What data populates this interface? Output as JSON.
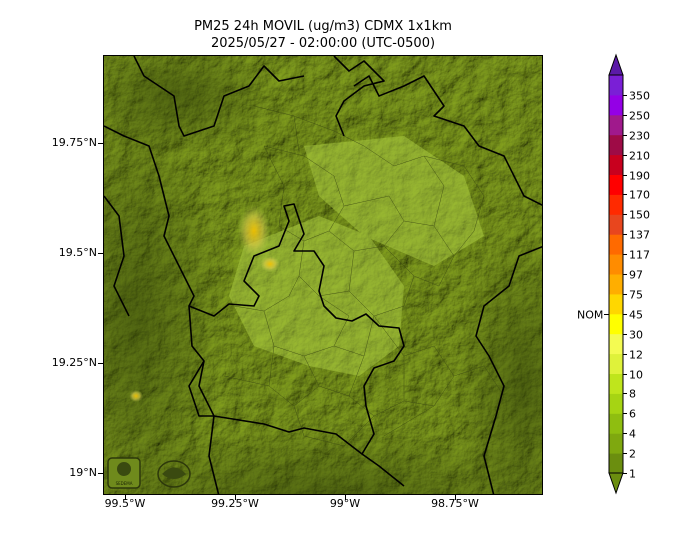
{
  "title": {
    "line1": "PM25 24h MOVIL (ug/m3) CDMX 1x1km",
    "line2": "2025/05/27 - 02:00:00 (UTC-0500)"
  },
  "map": {
    "lon_range": [
      -99.55,
      -98.55
    ],
    "lat_range": [
      18.95,
      19.95
    ],
    "lat_ticks": [
      {
        "value": 19.75,
        "label": "19.75°N"
      },
      {
        "value": 19.5,
        "label": "19.5°N"
      },
      {
        "value": 19.25,
        "label": "19.25°N"
      },
      {
        "value": 19.0,
        "label": "19°N"
      }
    ],
    "lon_ticks": [
      {
        "value": -99.5,
        "label": "99.5°W"
      },
      {
        "value": -99.25,
        "label": "99.25°W"
      },
      {
        "value": -99.0,
        "label": "99°W"
      },
      {
        "value": -98.75,
        "label": "98.75°W"
      }
    ],
    "logos": [
      "sedema-logo",
      "agency-logo"
    ]
  },
  "colorbar": {
    "levels": [
      "1",
      "2",
      "4",
      "6",
      "8",
      "10",
      "12",
      "30",
      "45",
      "75",
      "97",
      "117",
      "137",
      "150",
      "170",
      "190",
      "210",
      "230",
      "250",
      "350"
    ],
    "colors": [
      "#6b8e0f",
      "#7fa80f",
      "#8fbe10",
      "#a6d413",
      "#bfe51c",
      "#dff23a",
      "#f4fb52",
      "#ffff00",
      "#ffd700",
      "#ffae00",
      "#ff8c00",
      "#ff6a00",
      "#e8461e",
      "#ff2a00",
      "#ff0000",
      "#c8001e",
      "#9e0b46",
      "#a0198c",
      "#9400e6",
      "#7a1fd6"
    ],
    "nom_label": "NOM",
    "nom_level": "45"
  }
}
